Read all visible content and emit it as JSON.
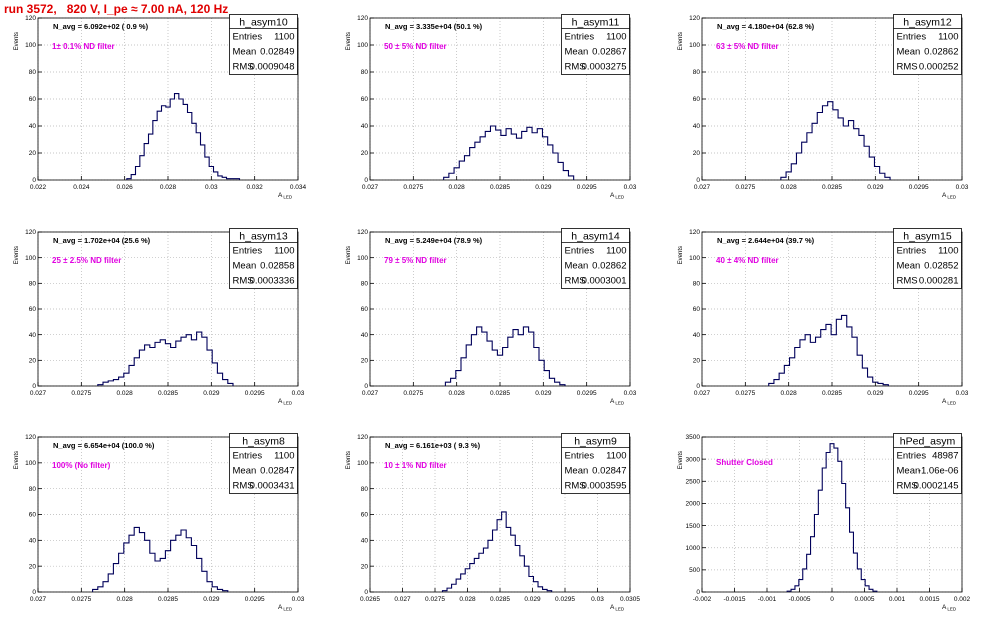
{
  "title": "run 3572,   820 V, I_pe ≈ 7.00 nA, 120 Hz",
  "colors": {
    "hist": "#00005a",
    "title_text": "#e00000",
    "annotation": "#e000e0",
    "grid": "#b4b4b4",
    "axis": "#000000"
  },
  "stats_labels": {
    "entries": "Entries",
    "mean": "Mean",
    "rms": "RMS"
  },
  "ylabel": "Events",
  "xlabel_main": "A",
  "xlabel_sub": "LED",
  "chart_data": [
    {
      "type": "bar",
      "name": "h_asym10",
      "navg": "N_avg = 6.092e+02 ( 0.9 %)",
      "filter": "1± 0.1% ND filter",
      "entries": "1100",
      "mean": "0.02849",
      "rms": "0.0009048",
      "xlim": [
        0.022,
        0.034
      ],
      "ylim": [
        0,
        120
      ],
      "xticks": [
        {
          "v": 0.022,
          "t": "0.022"
        },
        {
          "v": 0.024,
          "t": "0.024"
        },
        {
          "v": 0.026,
          "t": "0.026"
        },
        {
          "v": 0.028,
          "t": "0.028"
        },
        {
          "v": 0.03,
          "t": "0.03"
        },
        {
          "v": 0.032,
          "t": "0.032"
        },
        {
          "v": 0.034,
          "t": "0.034"
        }
      ],
      "yticks": [
        0,
        20,
        40,
        60,
        80,
        100,
        120
      ],
      "x": [
        0.0262,
        0.0264,
        0.0266,
        0.0268,
        0.027,
        0.0272,
        0.0274,
        0.0276,
        0.0278,
        0.028,
        0.0282,
        0.0284,
        0.0286,
        0.0288,
        0.029,
        0.0292,
        0.0294,
        0.0296,
        0.0298,
        0.03,
        0.0302,
        0.0304,
        0.0306,
        0.0308,
        0.031,
        0.0312
      ],
      "values": [
        1,
        4,
        10,
        18,
        27,
        34,
        44,
        51,
        55,
        54,
        60,
        64,
        60,
        56,
        50,
        42,
        35,
        26,
        17,
        10,
        6,
        3,
        2,
        1,
        1,
        1
      ]
    },
    {
      "type": "bar",
      "name": "h_asym11",
      "navg": "N_avg = 3.335e+04 (50.1 %)",
      "filter": "50 ± 5% ND filter",
      "entries": "1100",
      "mean": "0.02867",
      "rms": "0.0003275",
      "xlim": [
        0.027,
        0.03
      ],
      "ylim": [
        0,
        120
      ],
      "xticks": [
        {
          "v": 0.027,
          "t": "0.027"
        },
        {
          "v": 0.0275,
          "t": "0.0275"
        },
        {
          "v": 0.028,
          "t": "0.028"
        },
        {
          "v": 0.0285,
          "t": "0.0285"
        },
        {
          "v": 0.029,
          "t": "0.029"
        },
        {
          "v": 0.0295,
          "t": "0.0295"
        },
        {
          "v": 0.03,
          "t": "0.03"
        }
      ],
      "yticks": [
        0,
        20,
        40,
        60,
        80,
        100,
        120
      ],
      "x": [
        0.02788,
        0.02794,
        0.028,
        0.02806,
        0.02812,
        0.02818,
        0.02824,
        0.0283,
        0.02836,
        0.02842,
        0.02848,
        0.02854,
        0.0286,
        0.02866,
        0.02872,
        0.02878,
        0.02884,
        0.0289,
        0.02896,
        0.02902,
        0.02908,
        0.02914,
        0.0292,
        0.02926,
        0.02932
      ],
      "values": [
        2,
        5,
        9,
        14,
        18,
        24,
        28,
        32,
        36,
        40,
        37,
        33,
        38,
        34,
        31,
        36,
        39,
        35,
        38,
        32,
        26,
        20,
        13,
        7,
        3
      ]
    },
    {
      "type": "bar",
      "name": "h_asym12",
      "navg": "N_avg = 4.180e+04 (62.8 %)",
      "filter": "63 ± 5% ND filter",
      "entries": "1100",
      "mean": "0.02862",
      "rms": "0.000252",
      "xlim": [
        0.027,
        0.03
      ],
      "ylim": [
        0,
        120
      ],
      "xticks": [
        {
          "v": 0.027,
          "t": "0.027"
        },
        {
          "v": 0.0275,
          "t": "0.0275"
        },
        {
          "v": 0.028,
          "t": "0.028"
        },
        {
          "v": 0.0285,
          "t": "0.0285"
        },
        {
          "v": 0.029,
          "t": "0.029"
        },
        {
          "v": 0.0295,
          "t": "0.0295"
        },
        {
          "v": 0.03,
          "t": "0.03"
        }
      ],
      "yticks": [
        0,
        20,
        40,
        60,
        80,
        100,
        120
      ],
      "x": [
        0.02794,
        0.028,
        0.02806,
        0.02812,
        0.02818,
        0.02824,
        0.0283,
        0.02836,
        0.02842,
        0.02848,
        0.02854,
        0.0286,
        0.02866,
        0.02872,
        0.02878,
        0.02884,
        0.0289,
        0.02896,
        0.02902,
        0.02908,
        0.02914
      ],
      "values": [
        2,
        6,
        12,
        20,
        28,
        35,
        42,
        50,
        55,
        58,
        52,
        46,
        40,
        44,
        38,
        33,
        25,
        17,
        10,
        5,
        2
      ]
    },
    {
      "type": "bar",
      "name": "h_asym13",
      "navg": "N_avg = 1.702e+04 (25.6 %)",
      "filter": "25 ± 2.5% ND filter",
      "entries": "1100",
      "mean": "0.02858",
      "rms": "0.0003336",
      "xlim": [
        0.027,
        0.03
      ],
      "ylim": [
        0,
        120
      ],
      "xticks": [
        {
          "v": 0.027,
          "t": "0.027"
        },
        {
          "v": 0.0275,
          "t": "0.0275"
        },
        {
          "v": 0.028,
          "t": "0.028"
        },
        {
          "v": 0.0285,
          "t": "0.0285"
        },
        {
          "v": 0.029,
          "t": "0.029"
        },
        {
          "v": 0.0295,
          "t": "0.0295"
        },
        {
          "v": 0.03,
          "t": "0.03"
        }
      ],
      "yticks": [
        0,
        20,
        40,
        60,
        80,
        100,
        120
      ],
      "x": [
        0.02772,
        0.02778,
        0.02784,
        0.0279,
        0.02796,
        0.02802,
        0.02808,
        0.02814,
        0.0282,
        0.02826,
        0.02832,
        0.02838,
        0.02844,
        0.0285,
        0.02856,
        0.02862,
        0.02868,
        0.02874,
        0.0288,
        0.02886,
        0.02892,
        0.02898,
        0.02904,
        0.0291,
        0.02916,
        0.02922
      ],
      "values": [
        1,
        3,
        4,
        5,
        7,
        10,
        16,
        22,
        28,
        32,
        30,
        34,
        36,
        33,
        30,
        35,
        38,
        40,
        36,
        42,
        38,
        28,
        18,
        10,
        5,
        2
      ]
    },
    {
      "type": "bar",
      "name": "h_asym14",
      "navg": "N_avg = 5.249e+04 (78.9 %)",
      "filter": "79 ± 5% ND filter",
      "entries": "1100",
      "mean": "0.02862",
      "rms": "0.0003001",
      "xlim": [
        0.027,
        0.03
      ],
      "ylim": [
        0,
        120
      ],
      "xticks": [
        {
          "v": 0.027,
          "t": "0.027"
        },
        {
          "v": 0.0275,
          "t": "0.0275"
        },
        {
          "v": 0.028,
          "t": "0.028"
        },
        {
          "v": 0.0285,
          "t": "0.0285"
        },
        {
          "v": 0.029,
          "t": "0.029"
        },
        {
          "v": 0.0295,
          "t": "0.0295"
        },
        {
          "v": 0.03,
          "t": "0.03"
        }
      ],
      "yticks": [
        0,
        20,
        40,
        60,
        80,
        100,
        120
      ],
      "x": [
        0.0279,
        0.02796,
        0.02802,
        0.02808,
        0.02814,
        0.0282,
        0.02826,
        0.02832,
        0.02838,
        0.02844,
        0.0285,
        0.02856,
        0.02862,
        0.02868,
        0.02874,
        0.0288,
        0.02886,
        0.02892,
        0.02898,
        0.02904,
        0.0291,
        0.02916,
        0.02922
      ],
      "values": [
        3,
        6,
        12,
        22,
        32,
        40,
        46,
        42,
        35,
        28,
        24,
        30,
        38,
        44,
        40,
        46,
        42,
        30,
        20,
        12,
        6,
        3,
        1
      ]
    },
    {
      "type": "bar",
      "name": "h_asym15",
      "navg": "N_avg = 2.644e+04 (39.7 %)",
      "filter": "40 ± 4% ND filter",
      "entries": "1100",
      "mean": "0.02852",
      "rms": "0.000281",
      "xlim": [
        0.027,
        0.03
      ],
      "ylim": [
        0,
        120
      ],
      "xticks": [
        {
          "v": 0.027,
          "t": "0.027"
        },
        {
          "v": 0.0275,
          "t": "0.0275"
        },
        {
          "v": 0.028,
          "t": "0.028"
        },
        {
          "v": 0.0285,
          "t": "0.0285"
        },
        {
          "v": 0.029,
          "t": "0.029"
        },
        {
          "v": 0.0295,
          "t": "0.0295"
        },
        {
          "v": 0.03,
          "t": "0.03"
        }
      ],
      "yticks": [
        0,
        20,
        40,
        60,
        80,
        100,
        120
      ],
      "x": [
        0.0278,
        0.02786,
        0.02792,
        0.02798,
        0.02804,
        0.0281,
        0.02816,
        0.02822,
        0.02828,
        0.02834,
        0.0284,
        0.02846,
        0.02852,
        0.02858,
        0.02864,
        0.0287,
        0.02876,
        0.02882,
        0.02888,
        0.02894,
        0.029,
        0.02906,
        0.02912
      ],
      "values": [
        2,
        5,
        10,
        16,
        22,
        30,
        36,
        40,
        34,
        38,
        44,
        48,
        40,
        52,
        55,
        46,
        38,
        24,
        14,
        7,
        3,
        2,
        1
      ]
    },
    {
      "type": "bar",
      "name": "h_asym8",
      "navg": "N_avg = 6.654e+04 (100.0 %)",
      "filter": "100% (No filter)",
      "entries": "1100",
      "mean": "0.02847",
      "rms": "0.0003431",
      "xlim": [
        0.027,
        0.03
      ],
      "ylim": [
        0,
        120
      ],
      "xticks": [
        {
          "v": 0.027,
          "t": "0.027"
        },
        {
          "v": 0.0275,
          "t": "0.0275"
        },
        {
          "v": 0.028,
          "t": "0.028"
        },
        {
          "v": 0.0285,
          "t": "0.0285"
        },
        {
          "v": 0.029,
          "t": "0.029"
        },
        {
          "v": 0.0295,
          "t": "0.0295"
        },
        {
          "v": 0.03,
          "t": "0.03"
        }
      ],
      "yticks": [
        0,
        20,
        40,
        60,
        80,
        100,
        120
      ],
      "x": [
        0.02766,
        0.02772,
        0.02778,
        0.02784,
        0.0279,
        0.02796,
        0.02802,
        0.02808,
        0.02814,
        0.0282,
        0.02826,
        0.02832,
        0.02838,
        0.02844,
        0.0285,
        0.02856,
        0.02862,
        0.02868,
        0.02874,
        0.0288,
        0.02886,
        0.02892,
        0.02898,
        0.02904,
        0.0291,
        0.02916
      ],
      "values": [
        2,
        4,
        8,
        14,
        22,
        30,
        38,
        44,
        50,
        46,
        40,
        30,
        24,
        26,
        32,
        40,
        44,
        48,
        42,
        36,
        26,
        16,
        8,
        4,
        2,
        1
      ]
    },
    {
      "type": "bar",
      "name": "h_asym9",
      "navg": "N_avg = 6.161e+03 ( 9.3 %)",
      "filter": "10 ± 1% ND filter",
      "entries": "1100",
      "mean": "0.02847",
      "rms": "0.0003595",
      "xlim": [
        0.0265,
        0.0305
      ],
      "ylim": [
        0,
        120
      ],
      "xticks": [
        {
          "v": 0.0265,
          "t": "0.0265"
        },
        {
          "v": 0.027,
          "t": "0.027"
        },
        {
          "v": 0.0275,
          "t": "0.0275"
        },
        {
          "v": 0.028,
          "t": "0.028"
        },
        {
          "v": 0.0285,
          "t": "0.0285"
        },
        {
          "v": 0.029,
          "t": "0.029"
        },
        {
          "v": 0.0295,
          "t": "0.0295"
        },
        {
          "v": 0.03,
          "t": "0.03"
        },
        {
          "v": 0.0305,
          "t": "0.0305"
        }
      ],
      "yticks": [
        0,
        20,
        40,
        60,
        80,
        100,
        120
      ],
      "x": [
        0.02765,
        0.02772,
        0.02779,
        0.02786,
        0.02793,
        0.028,
        0.02807,
        0.02814,
        0.02821,
        0.02828,
        0.02835,
        0.02842,
        0.02849,
        0.02856,
        0.02863,
        0.0287,
        0.02877,
        0.02884,
        0.02891,
        0.02898,
        0.02905,
        0.02912,
        0.02919,
        0.02926
      ],
      "values": [
        1,
        3,
        6,
        10,
        14,
        18,
        22,
        26,
        30,
        34,
        40,
        48,
        56,
        62,
        50,
        44,
        36,
        28,
        20,
        12,
        8,
        4,
        2,
        1
      ]
    },
    {
      "type": "bar",
      "name": "hPed_asym",
      "navg": "",
      "filter": "Shutter Closed",
      "entries": "48987",
      "mean": "-1.06e-06",
      "rms": "0.0002145",
      "xlim": [
        -0.002,
        0.002
      ],
      "ylim": [
        0,
        3500
      ],
      "xticks": [
        {
          "v": -0.002,
          "t": "-0.002"
        },
        {
          "v": -0.0015,
          "t": "-0.0015"
        },
        {
          "v": -0.001,
          "t": "-0.001"
        },
        {
          "v": -0.0005,
          "t": "-0.0005"
        },
        {
          "v": 0,
          "t": "0"
        },
        {
          "v": 0.0005,
          "t": "0.0005"
        },
        {
          "v": 0.001,
          "t": "0.001"
        },
        {
          "v": 0.0015,
          "t": "0.0015"
        },
        {
          "v": 0.002,
          "t": "0.002"
        }
      ],
      "yticks": [
        0,
        500,
        1000,
        1500,
        2000,
        2500,
        3000,
        3500
      ],
      "x": [
        -0.00066,
        -0.0006,
        -0.00054,
        -0.00048,
        -0.00042,
        -0.00036,
        -0.0003,
        -0.00024,
        -0.00018,
        -0.00012,
        -6e-05,
        0,
        6e-05,
        0.00012,
        0.00018,
        0.00024,
        0.0003,
        0.00036,
        0.00042,
        0.00048,
        0.00054,
        0.0006,
        0.00066
      ],
      "values": [
        20,
        60,
        140,
        280,
        520,
        850,
        1250,
        1750,
        2300,
        2800,
        3150,
        3350,
        3250,
        2950,
        2450,
        1900,
        1350,
        880,
        520,
        280,
        140,
        60,
        20
      ]
    }
  ]
}
